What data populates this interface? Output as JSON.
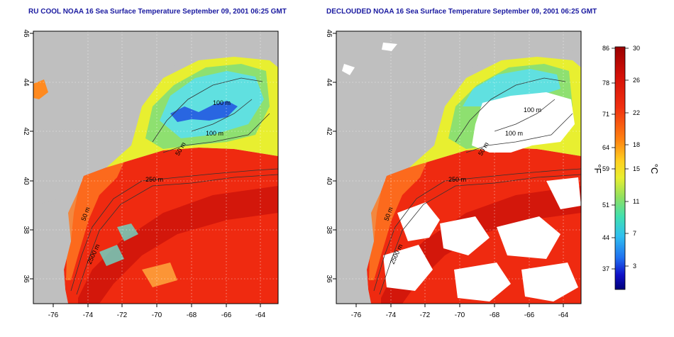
{
  "left_panel": {
    "title": "RU COOL NOAA 16 Sea Surface Temperature September 09, 2001 06:25 GMT",
    "contour_labels": [
      "100 m",
      "100 m",
      "50 m",
      "250 m",
      "50 m",
      "2500 m"
    ]
  },
  "right_panel": {
    "title": "DECLOUDED NOAA 16 Sea Surface Temperature September 09, 2001 06:25 GMT",
    "contour_labels": [
      "100 m",
      "100 m",
      "50 m",
      "250 m",
      "50 m",
      "2500 m"
    ]
  },
  "axes": {
    "lon_ticks": [
      "-76",
      "-74",
      "-72",
      "-70",
      "-68",
      "-66",
      "-64"
    ],
    "lat_ticks": [
      "46",
      "44",
      "42",
      "40",
      "38",
      "36"
    ]
  },
  "colorbar": {
    "fahrenheit_label": "°F",
    "celsius_label": "°C",
    "fahrenheit_ticks": [
      "86",
      "78",
      "71",
      "64",
      "59",
      "51",
      "44",
      "37"
    ],
    "celsius_ticks": [
      "30",
      "26",
      "22",
      "18",
      "15",
      "11",
      "7",
      "3"
    ],
    "colors": [
      "#9a0000",
      "#e12010",
      "#ff5a10",
      "#ffa010",
      "#f0e020",
      "#a0e040",
      "#40e0a0",
      "#30c0f0",
      "#2060f0",
      "#1010c0",
      "#00007a"
    ]
  },
  "colors": {
    "land": "#bfbfbf",
    "cloud_mask": "#ffffff",
    "warm_water": "#ef2a10",
    "gulf_stream": "#c80f0a",
    "cool_water": "#60e0e0",
    "title_color": "#1a1aa0"
  }
}
